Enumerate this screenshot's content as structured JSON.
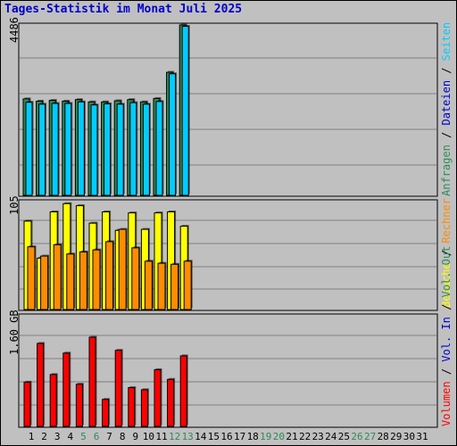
{
  "window": {
    "title": "Tages-Statistik im Monat Juli 2025"
  },
  "days": [
    "1",
    "2",
    "3",
    "4",
    "5",
    "6",
    "7",
    "8",
    "9",
    "10",
    "11",
    "12",
    "13",
    "14",
    "15",
    "16",
    "17",
    "18",
    "19",
    "20",
    "21",
    "22",
    "23",
    "24",
    "25",
    "26",
    "27",
    "28",
    "29",
    "30",
    "31"
  ],
  "weekend_days": [
    "5",
    "6",
    "12",
    "13",
    "19",
    "20",
    "26",
    "27"
  ],
  "chart_data": [
    {
      "type": "bar",
      "title": "Tages-Statistik im Monat Juli 2025",
      "panel_label": "4486",
      "ylim": [
        0,
        4486
      ],
      "categories": [
        "1",
        "2",
        "3",
        "4",
        "5",
        "6",
        "7",
        "8",
        "9",
        "10",
        "11",
        "12",
        "13"
      ],
      "series": [
        {
          "name": "Anfragen",
          "color": "#2e8b57",
          "values": [
            2540,
            2480,
            2500,
            2480,
            2520,
            2460,
            2460,
            2490,
            2520,
            2460,
            2550,
            3240,
            4486
          ]
        },
        {
          "name": "Dateien",
          "color": "#0000cc",
          "values": [
            0,
            0,
            0,
            0,
            0,
            0,
            0,
            0,
            0,
            0,
            0,
            0,
            0
          ]
        },
        {
          "name": "Seiten",
          "color": "#00ccff",
          "values": [
            2450,
            2400,
            2420,
            2420,
            2460,
            2380,
            2410,
            2400,
            2440,
            2400,
            2470,
            3200,
            4450
          ]
        }
      ],
      "legend": "right, vertical",
      "grid": true
    },
    {
      "type": "bar",
      "panel_label": "105",
      "ylim": [
        0,
        105
      ],
      "categories": [
        "1",
        "2",
        "3",
        "4",
        "5",
        "6",
        "7",
        "8",
        "9",
        "10",
        "11",
        "12",
        "13"
      ],
      "series": [
        {
          "name": "Besuche",
          "color": "#ffff00",
          "values": [
            86,
            50,
            95,
            103,
            101,
            84,
            95,
            77,
            94,
            78,
            94,
            95,
            81
          ]
        },
        {
          "name": "Rechner",
          "color": "#ff8c00",
          "values": [
            61,
            52,
            63,
            54,
            56,
            58,
            66,
            78,
            60,
            47,
            45,
            44,
            47
          ]
        }
      ],
      "legend": "right, vertical",
      "grid": true
    },
    {
      "type": "bar",
      "panel_label": "1.60 GB",
      "ylim": [
        0,
        1.6
      ],
      "categories": [
        "1",
        "2",
        "3",
        "4",
        "5",
        "6",
        "7",
        "8",
        "9",
        "10",
        "11",
        "12",
        "13"
      ],
      "series": [
        {
          "name": "Volumen",
          "color": "#ff0000",
          "values": [
            0.64,
            1.2,
            0.75,
            1.06,
            0.61,
            1.29,
            0.39,
            1.1,
            0.56,
            0.53,
            0.82,
            0.68,
            1.02
          ]
        },
        {
          "name": "Vol. In",
          "color": "#0000cc",
          "values": [
            0,
            0,
            0,
            0,
            0,
            0,
            0,
            0,
            0,
            0,
            0,
            0,
            0
          ]
        },
        {
          "name": "Vol. Out",
          "color": "#2e8b57",
          "values": [
            0,
            0,
            0,
            0,
            0,
            0,
            0,
            0,
            0,
            0,
            0,
            0,
            0
          ]
        }
      ],
      "legend": "right, vertical",
      "grid": true
    }
  ]
}
